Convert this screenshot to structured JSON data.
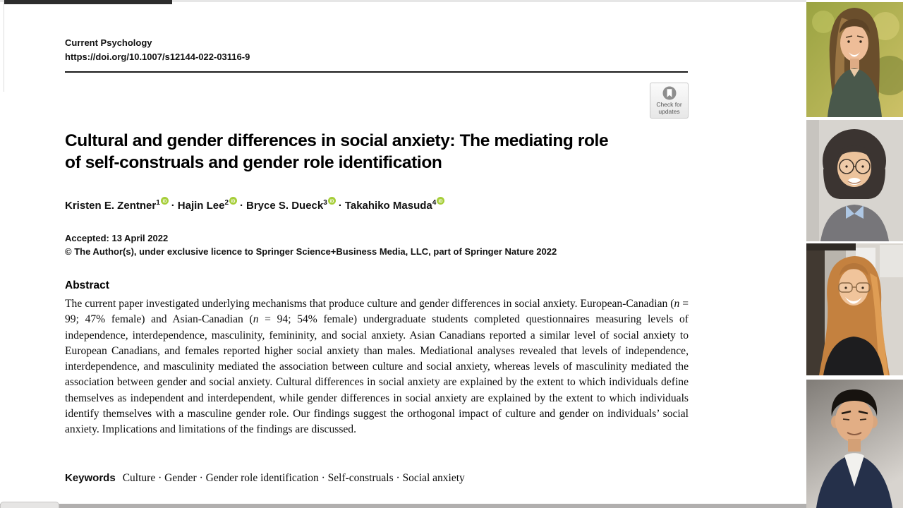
{
  "journal": {
    "name": "Current Psychology",
    "doi": "https://doi.org/10.1007/s12144-022-03116-9"
  },
  "badge": {
    "line1": "Check for",
    "line2": "updates"
  },
  "title": {
    "lines": [
      "Cultural and gender differences in social anxiety: The mediating role",
      "of self-construals and gender role identification"
    ]
  },
  "authors": [
    {
      "name": "Kristen E. Zentner",
      "sup": "1"
    },
    {
      "name": "Hajin Lee",
      "sup": "2"
    },
    {
      "name": "Bryce S. Dueck",
      "sup": "3"
    },
    {
      "name": "Takahiko Masuda",
      "sup": "4"
    }
  ],
  "author_separator": "·",
  "meta": {
    "accepted": "Accepted: 13 April 2022",
    "copyright": "© The Author(s), under exclusive licence to Springer Science+Business Media, LLC, part of Springer Nature 2022"
  },
  "abstract": {
    "heading": "Abstract",
    "segments": [
      {
        "t": "The current paper investigated underlying mechanisms that produce culture and gender differences in social anxiety. European-Canadian ("
      },
      {
        "t": "n",
        "i": true
      },
      {
        "t": " = 99; 47% female) and Asian-Canadian ("
      },
      {
        "t": "n",
        "i": true
      },
      {
        "t": " = 94; 54% female) undergraduate students completed questionnaires measuring levels of independence, interdependence, masculinity, femininity, and social anxiety. Asian Canadians reported a similar level of social anxiety to European Canadians, and females reported higher social anxiety than males. Mediational analyses revealed that levels of independence, interdependence, and masculinity mediated the association between culture and social anxiety, whereas levels of masculinity mediated the association between gender and social anxiety. Cultural differences in social anxiety are explained by the extent to which individuals define themselves as independent and interdependent, while gender differences in social anxiety are explained by the extent to which individuals identify themselves with a masculine gender role. Our findings suggest the orthogonal impact of culture and gender on individuals’ social anxiety. Implications and limitations of the findings are discussed."
      }
    ]
  },
  "keywords": {
    "heading": "Keywords",
    "items": [
      "Culture",
      "Gender",
      "Gender role identification",
      "Self-construals",
      "Social anxiety"
    ]
  },
  "participants": [
    {
      "alt": "woman with long brown hair, green blazer, green-yellow bokeh background"
    },
    {
      "alt": "person with dark bob haircut and round glasses, gray sweater over blue collar shirt"
    },
    {
      "alt": "smiling woman with long copper-orange hair and glasses, black top, indoor background"
    },
    {
      "alt": "man with short black hair, navy suit and white shirt, gray background"
    }
  ],
  "colors": {
    "orcid_green": "#a6ce39",
    "rule_black": "#1a1a1a",
    "badge_icon_gray": "#8e8e8e",
    "bottom_bar_gray": "#b1afae"
  }
}
